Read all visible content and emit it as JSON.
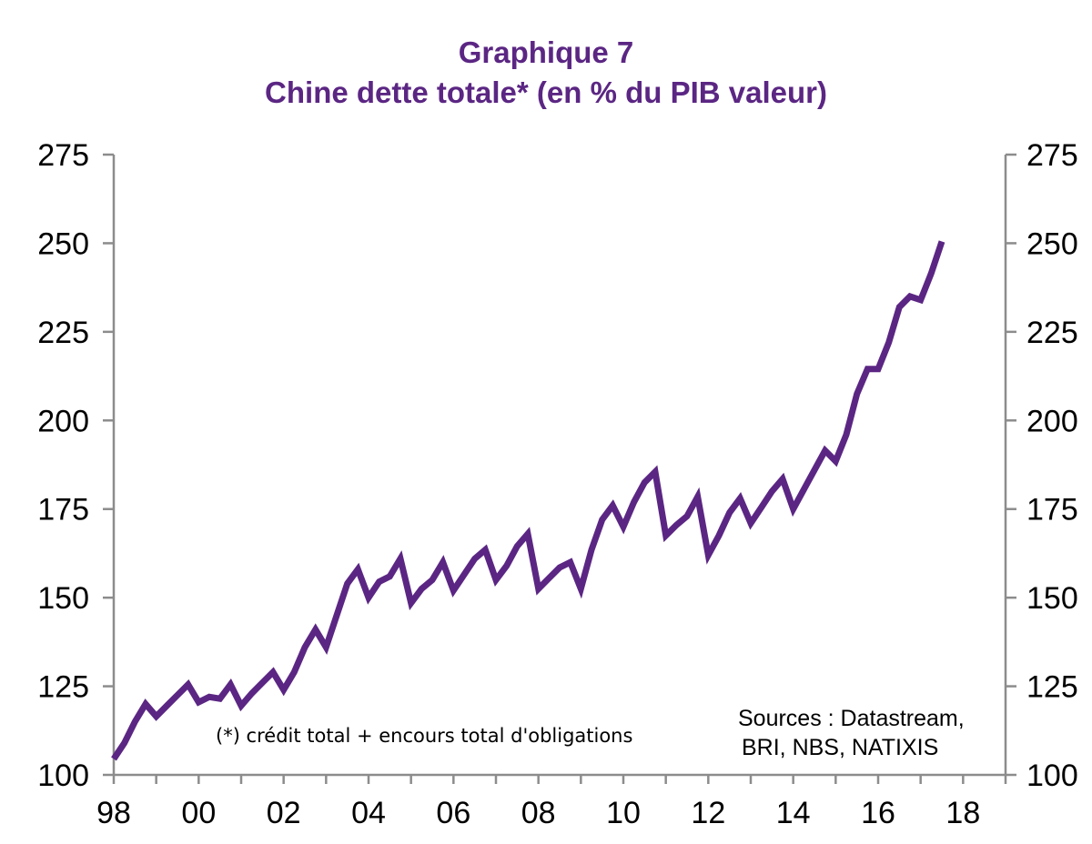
{
  "header": {
    "title": "Graphique 7",
    "subtitle": "Chine dette totale* (en % du PIB valeur)"
  },
  "footnote": "(*) crédit total + encours total d'obligations",
  "sources": {
    "line1": "Sources : Datastream,",
    "line2": "BRI, NBS, NATIXIS"
  },
  "colors": {
    "line": "#5b2683",
    "title": "#5b2683",
    "axis": "#8c8c8c"
  },
  "chart_data": {
    "type": "line",
    "title": "Graphique 7",
    "subtitle": "Chine dette totale* (en % du PIB valeur)",
    "xlabel": "",
    "ylabel": "",
    "xlim": [
      1998,
      2019
    ],
    "ylim": [
      100,
      275
    ],
    "y_ticks": [
      100,
      125,
      150,
      175,
      200,
      225,
      250,
      275
    ],
    "y_tick_labels": [
      "100",
      "125",
      "150",
      "175",
      "200",
      "225",
      "250",
      "275"
    ],
    "x_ticks": [
      1998,
      2000,
      2002,
      2004,
      2006,
      2008,
      2010,
      2012,
      2014,
      2016,
      2018
    ],
    "x_tick_labels": [
      "98",
      "00",
      "02",
      "04",
      "06",
      "08",
      "10",
      "12",
      "14",
      "16",
      "18"
    ],
    "secondary_y_axis": true,
    "grid": false,
    "series": [
      {
        "name": "Chine dette totale (% du PIB valeur)",
        "x": [
          1998.0,
          1998.25,
          1998.5,
          1998.75,
          1999.0,
          1999.25,
          1999.5,
          1999.75,
          2000.0,
          2000.25,
          2000.5,
          2000.75,
          2001.0,
          2001.25,
          2001.5,
          2001.75,
          2002.0,
          2002.25,
          2002.5,
          2002.75,
          2003.0,
          2003.25,
          2003.5,
          2003.75,
          2004.0,
          2004.25,
          2004.5,
          2004.75,
          2005.0,
          2005.25,
          2005.5,
          2005.75,
          2006.0,
          2006.25,
          2006.5,
          2006.75,
          2007.0,
          2007.25,
          2007.5,
          2007.75,
          2008.0,
          2008.25,
          2008.5,
          2008.75,
          2009.0,
          2009.25,
          2009.5,
          2009.75,
          2010.0,
          2010.25,
          2010.5,
          2010.75,
          2011.0,
          2011.25,
          2011.5,
          2011.75,
          2012.0,
          2012.25,
          2012.5,
          2012.75,
          2013.0,
          2013.25,
          2013.5,
          2013.75,
          2014.0,
          2014.25,
          2014.5,
          2014.75,
          2015.0,
          2015.25,
          2015.5,
          2015.75,
          2016.0,
          2016.25,
          2016.5,
          2016.75,
          2017.0,
          2017.25,
          2017.5
        ],
        "values": [
          104.5,
          109,
          115,
          120,
          116.5,
          119.5,
          122.5,
          125.5,
          120.5,
          122,
          121.5,
          125.5,
          119.5,
          123,
          126,
          129,
          124,
          129,
          136,
          141,
          136,
          145,
          154,
          158,
          150,
          154.5,
          156,
          161,
          148.5,
          152.5,
          155,
          160,
          152,
          156.5,
          161,
          163.5,
          155,
          159,
          164.5,
          168,
          152.5,
          155.5,
          158.5,
          160,
          152.5,
          163.5,
          172,
          176,
          170,
          177,
          182.5,
          185.5,
          167.5,
          170.5,
          173,
          178.5,
          162,
          167.5,
          174,
          178,
          171,
          175.5,
          180,
          183.5,
          175,
          180.5,
          186,
          191.5,
          188.5,
          196,
          207.5,
          214.5,
          214.5,
          222,
          232,
          235,
          234,
          241.5,
          250.5
        ]
      }
    ]
  }
}
